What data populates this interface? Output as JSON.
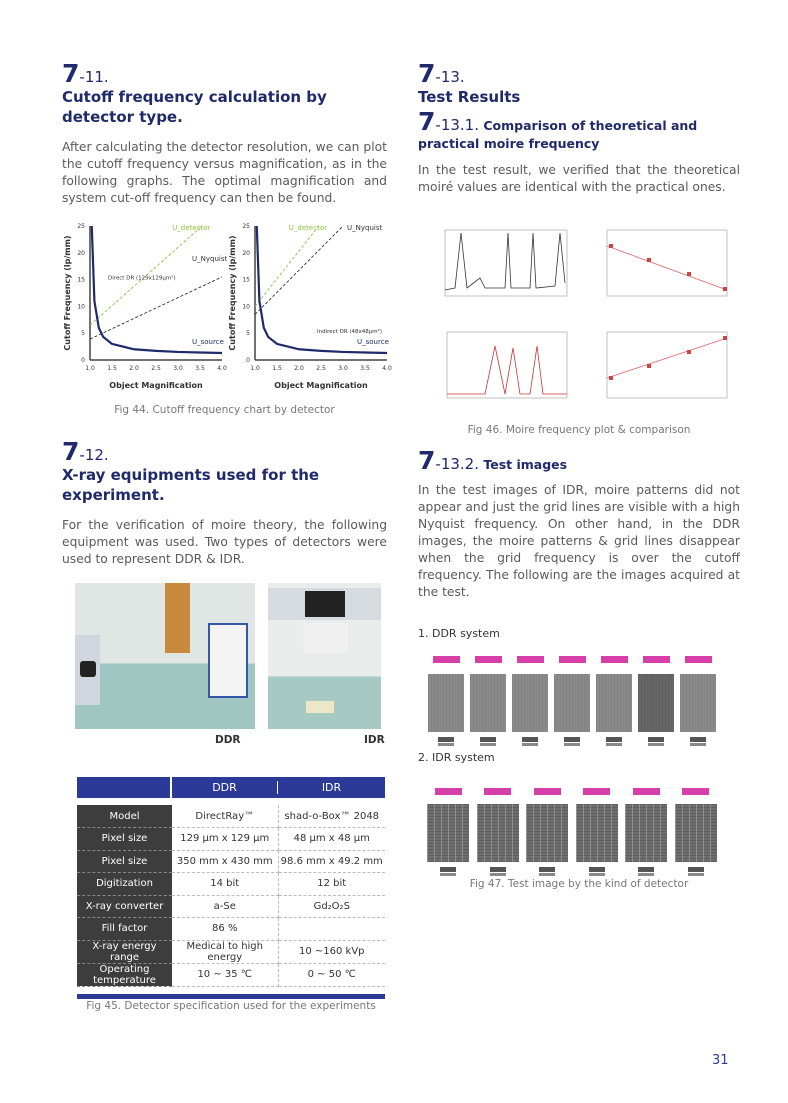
{
  "s711": {
    "num_major": "7",
    "num_minor": "-11.",
    "title": "Cutoff frequency calculation by detector type.",
    "body": "After calculating the detector resolution, we can plot the cutoff frequency versus magnification, as in the following graphs. The optimal magnification and system cut-off frequency can then be found.",
    "caption": "Fig 44. Cutoff frequency chart by detector"
  },
  "chart_data": [
    {
      "type": "line",
      "xlabel": "Object Magnification",
      "ylabel": "Cutoff Frequency (lp/mm)",
      "xlim": [
        1.0,
        4.0
      ],
      "ylim": [
        0,
        25
      ],
      "xticks": [
        "1.0",
        "1.5",
        "2.0",
        "2.5",
        "3.0",
        "3.5",
        "4.0"
      ],
      "yticks": [
        "0",
        "5",
        "10",
        "15",
        "20",
        "25"
      ],
      "annotation": "Direct DR (129x129μm²)",
      "series": [
        {
          "name": "U_detector",
          "color": "#8cc63f",
          "x": [
            1.0,
            3.55
          ],
          "y": [
            6.5,
            25
          ]
        },
        {
          "name": "U_Nyquist",
          "color": "#333333",
          "x": [
            1.0,
            4.0
          ],
          "y": [
            3.9,
            15.5
          ]
        },
        {
          "name": "U_source",
          "color": "#1f2a6b",
          "x": [
            1.04,
            1.1,
            1.2,
            1.3,
            1.5,
            2.0,
            2.5,
            3.0,
            3.5,
            4.0
          ],
          "y": [
            25,
            11,
            6,
            4.3,
            3,
            2,
            1.7,
            1.5,
            1.4,
            1.3
          ]
        }
      ]
    },
    {
      "type": "line",
      "xlabel": "Object Magnification",
      "ylabel": "Cutoff Frequency (lp/mm)",
      "xlim": [
        1.0,
        4.0
      ],
      "ylim": [
        0,
        25
      ],
      "xticks": [
        "1.0",
        "1.5",
        "2.0",
        "2.5",
        "3.0",
        "3.5",
        "4.0"
      ],
      "yticks": [
        "0",
        "5",
        "10",
        "15",
        "20",
        "25"
      ],
      "annotation": "Indirect DR (48x48μm²)",
      "series": [
        {
          "name": "U_detector",
          "color": "#8cc63f",
          "x": [
            1.0,
            2.45
          ],
          "y": [
            10,
            25
          ]
        },
        {
          "name": "U_Nyquist",
          "color": "#333333",
          "x": [
            1.0,
            3.0
          ],
          "y": [
            8.5,
            25
          ]
        },
        {
          "name": "U_source",
          "color": "#1f2a6b",
          "x": [
            1.04,
            1.1,
            1.2,
            1.3,
            1.5,
            2.0,
            2.5,
            3.0,
            3.5,
            4.0
          ],
          "y": [
            25,
            11,
            6,
            4.3,
            3,
            2,
            1.7,
            1.5,
            1.4,
            1.3
          ]
        }
      ]
    }
  ],
  "s712": {
    "num_major": "7",
    "num_minor": "-12.",
    "title": "X-ray equipments used for the experiment.",
    "body": "For the verification of moire theory, the following equipment was used. Two types of detectors were used to represent DDR & IDR.",
    "photo_ddr_label": "DDR",
    "photo_idr_label": "IDR"
  },
  "table": {
    "headers": [
      "DDR",
      "IDR"
    ],
    "rows": [
      {
        "k": "Model",
        "ddr": "DirectRay™",
        "idr": "shad-o-Box™ 2048"
      },
      {
        "k": "Pixel size",
        "ddr": "129 μm x 129 μm",
        "idr": "48 μm x 48 μm"
      },
      {
        "k": "Pixel size",
        "ddr": "350 mm x 430 mm",
        "idr": "98.6 mm x 49.2 mm"
      },
      {
        "k": "Digitization",
        "ddr": "14 bit",
        "idr": "12 bit"
      },
      {
        "k": "X-ray converter",
        "ddr": "a-Se",
        "idr": "Gd₂O₂S"
      },
      {
        "k": "Fill factor",
        "ddr": "86 %",
        "idr": ""
      },
      {
        "k": "X-ray energy range",
        "ddr": "Medical to high energy",
        "idr": "10 ~160 kVp"
      },
      {
        "k": "Operating temperature",
        "ddr": "10 ~ 35 ℃",
        "idr": "0 ~ 50 ℃"
      }
    ],
    "caption": "Fig 45. Detector specification used for the experiments"
  },
  "s713": {
    "num_major": "7",
    "num_minor": "-13.",
    "title": "Test Results",
    "sub1_num_major": "7",
    "sub1_num_minor": "-13.1.",
    "sub1_title": "Comparison of theoretical and practical moire frequency",
    "sub1_body": "In the test result, we verified that the theoretical moiré values are identical with the practical ones.",
    "fig46_caption": "Fig 46. Moire frequency plot & comparison",
    "sub2_num_major": "7",
    "sub2_num_minor": "-13.2.",
    "sub2_title": "Test images",
    "sub2_body": "In the test images of IDR, moire patterns did not appear and just the grid lines are visible with a high Nyquist frequency. On other hand, in the DDR images, the moire patterns & grid lines disappear when the grid frequency is over the cutoff frequency. The following are the images acquired at the test.",
    "ddr_heading": "1. DDR system",
    "idr_heading": "2. IDR system",
    "fig47_caption": "Fig 47. Test image by the kind of detector"
  },
  "colors": {
    "heading": "#1f2a6b",
    "table_header": "#2b3a96",
    "tag": "#d63fa8"
  },
  "page_number": "31"
}
